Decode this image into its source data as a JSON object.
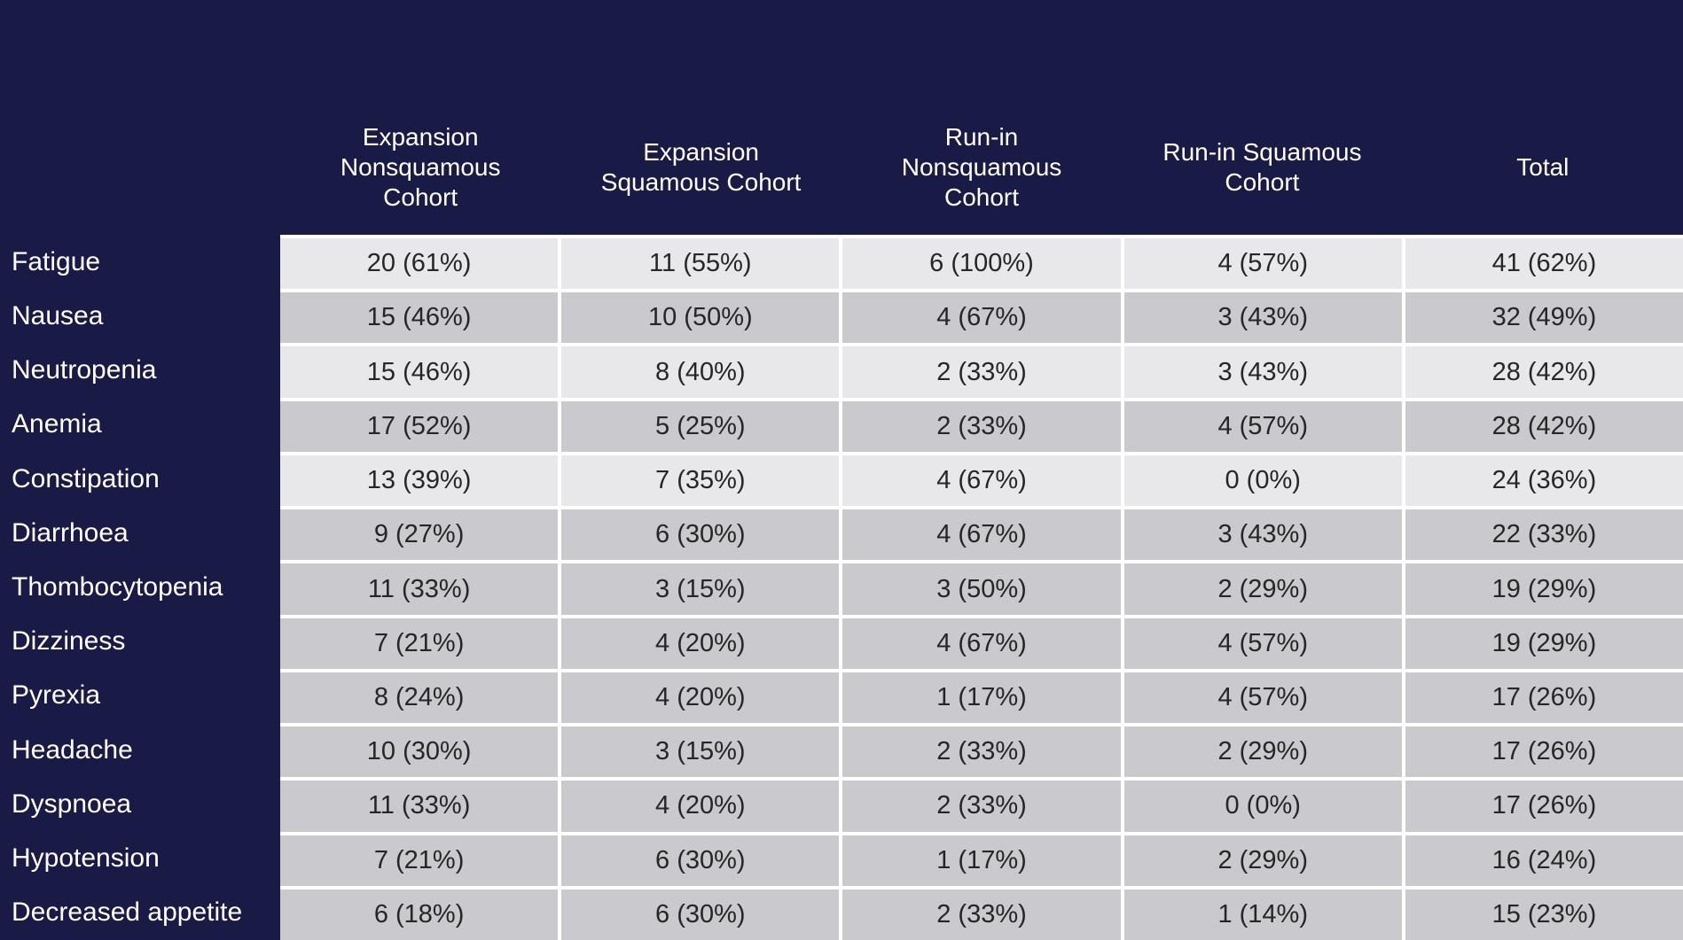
{
  "chart_data": {
    "type": "table",
    "columns": [
      "Expansion\nNonsquamous\nCohort",
      "Expansion\nSquamous Cohort",
      "Run-in\nNonsquamous\nCohort",
      "Run-in Squamous\nCohort",
      "Total"
    ],
    "rows": [
      {
        "label": "Fatigue",
        "values": [
          "20 (61%)",
          "11 (55%)",
          "6 (100%)",
          "4 (57%)",
          "41 (62%)"
        ],
        "shade": "light"
      },
      {
        "label": "Nausea",
        "values": [
          "15 (46%)",
          "10 (50%)",
          "4 (67%)",
          "3 (43%)",
          "32 (49%)"
        ],
        "shade": "dark"
      },
      {
        "label": "Neutropenia",
        "values": [
          "15 (46%)",
          "8 (40%)",
          "2 (33%)",
          "3 (43%)",
          "28 (42%)"
        ],
        "shade": "light"
      },
      {
        "label": "Anemia",
        "values": [
          "17 (52%)",
          "5 (25%)",
          "2 (33%)",
          "4 (57%)",
          "28 (42%)"
        ],
        "shade": "dark"
      },
      {
        "label": "Constipation",
        "values": [
          "13 (39%)",
          "7 (35%)",
          "4 (67%)",
          "0 (0%)",
          "24 (36%)"
        ],
        "shade": "light"
      },
      {
        "label": "Diarrhoea",
        "values": [
          "9 (27%)",
          "6 (30%)",
          "4 (67%)",
          "3 (43%)",
          "22 (33%)"
        ],
        "shade": "dark"
      },
      {
        "label": "Thombocytopenia",
        "values": [
          "11 (33%)",
          "3 (15%)",
          "3 (50%)",
          "2 (29%)",
          "19 (29%)"
        ],
        "shade": "dark"
      },
      {
        "label": "Dizziness",
        "values": [
          "7 (21%)",
          "4 (20%)",
          "4 (67%)",
          "4 (57%)",
          "19 (29%)"
        ],
        "shade": "dark"
      },
      {
        "label": "Pyrexia",
        "values": [
          "8 (24%)",
          "4 (20%)",
          "1 (17%)",
          "4 (57%)",
          "17 (26%)"
        ],
        "shade": "dark"
      },
      {
        "label": "Headache",
        "values": [
          "10 (30%)",
          "3 (15%)",
          "2 (33%)",
          "2 (29%)",
          "17 (26%)"
        ],
        "shade": "dark"
      },
      {
        "label": "Dyspnoea",
        "values": [
          "11 (33%)",
          "4 (20%)",
          "2 (33%)",
          "0 (0%)",
          "17 (26%)"
        ],
        "shade": "dark"
      },
      {
        "label": "Hypotension",
        "values": [
          "7 (21%)",
          "6 (30%)",
          "1 (17%)",
          "2 (29%)",
          "16 (24%)"
        ],
        "shade": "dark"
      },
      {
        "label": "Decreased appetite",
        "values": [
          "6 (18%)",
          "6 (30%)",
          "2 (33%)",
          "1 (14%)",
          "15 (23%)"
        ],
        "shade": "dark"
      }
    ],
    "layout_hints": {
      "row_header_column": true,
      "grid": "white separators between data cells only",
      "legend": "none"
    }
  },
  "colors": {
    "slide_background": "#1a1a46",
    "row_light": "#e8e8ea",
    "row_dark": "#c9c9ce",
    "grid_separator": "#ffffff",
    "cell_text": "#262626",
    "header_text": "#ffffff"
  }
}
